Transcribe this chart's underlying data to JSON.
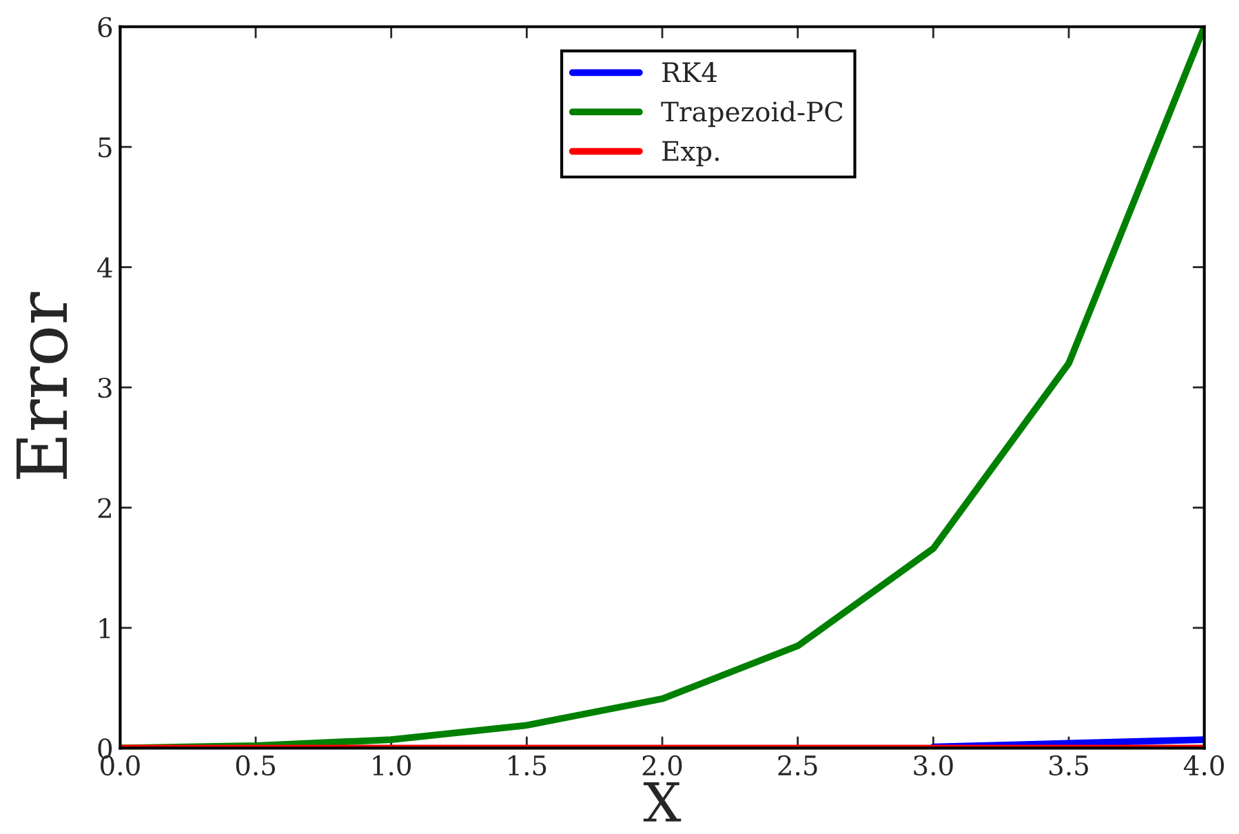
{
  "chart_data": {
    "type": "line",
    "xlabel": "X",
    "ylabel": "Error",
    "x": [
      0.0,
      0.5,
      1.0,
      1.5,
      2.0,
      2.5,
      3.0,
      3.5,
      4.0
    ],
    "series": [
      {
        "name": "RK4",
        "color": "#0000ff",
        "values": [
          null,
          null,
          null,
          null,
          null,
          null,
          0.01,
          0.04,
          0.07
        ]
      },
      {
        "name": "Trapezoid-PC",
        "color": "#008000",
        "values": [
          0,
          0.02,
          0.07,
          0.19,
          0.41,
          0.85,
          1.66,
          3.2,
          6.0
        ]
      },
      {
        "name": "Exp.",
        "color": "#ff0000",
        "values": [
          0,
          0,
          0,
          0,
          0,
          0,
          0,
          0,
          0
        ]
      }
    ],
    "xlim": [
      0.0,
      4.0
    ],
    "xticks": [
      {
        "value": 0,
        "label": "0.0"
      },
      0.5,
      {
        "value": 1,
        "label": "1.0"
      },
      1.5,
      {
        "value": 2,
        "label": "2.0"
      },
      2.5,
      {
        "value": 3,
        "label": "3.0"
      },
      3.5,
      {
        "value": 4,
        "label": "4.0"
      }
    ],
    "ylim": [
      0,
      6
    ],
    "yticks": [
      0,
      1,
      2,
      3,
      4,
      5,
      6
    ],
    "grid": false,
    "legend": "top right",
    "marker": "none",
    "line_style": "solid"
  }
}
